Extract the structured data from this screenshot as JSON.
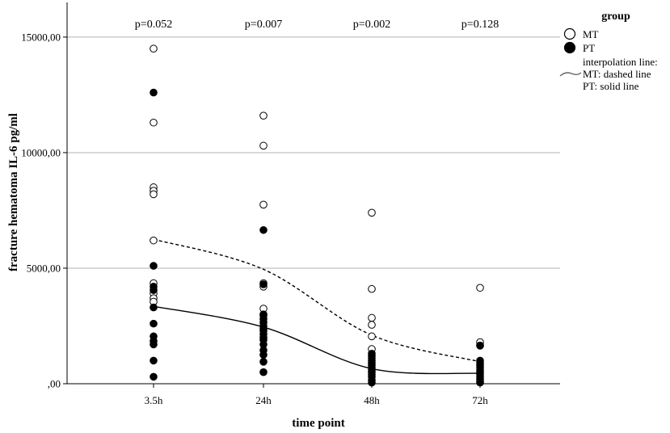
{
  "chart_data": {
    "type": "scatter",
    "title": "",
    "xlabel": "time point",
    "ylabel": "fracture hematoma IL-6 pg/ml",
    "categories": [
      "3.5h",
      "24h",
      "48h",
      "72h"
    ],
    "ylim": [
      0,
      16500
    ],
    "y_ticks": [
      0,
      5000,
      10000,
      15000
    ],
    "y_tick_labels": [
      ",00",
      "5000,00",
      "10000,00",
      "15000,00"
    ],
    "grid": "horizontal",
    "p_values": [
      "p=0.052",
      "p=0.007",
      "p=0.002",
      "p=0.128"
    ],
    "legend": {
      "title": "group",
      "placement": "top-right",
      "entries": [
        "MT",
        "PT"
      ],
      "interpolation_note": [
        "interpolation line:",
        "MT: dashed line",
        "PT: solid line"
      ]
    },
    "series": [
      {
        "name": "MT",
        "marker": "open-circle",
        "points": {
          "3.5h": [
            14500,
            11300,
            8500,
            8350,
            8200,
            6200,
            4350,
            3900,
            3700,
            3550
          ],
          "24h": [
            11600,
            10300,
            7750,
            4350,
            4200,
            3250,
            2950
          ],
          "48h": [
            7400,
            4100,
            2850,
            2550,
            2050,
            1500
          ],
          "72h": [
            4150,
            1800,
            1650,
            900
          ]
        },
        "interpolation": {
          "style": "dashed",
          "values": [
            6250,
            4950,
            2100,
            950
          ]
        }
      },
      {
        "name": "PT",
        "marker": "filled-circle",
        "points": {
          "3.5h": [
            12600,
            5100,
            4200,
            4050,
            3300,
            2600,
            2050,
            1850,
            1700,
            1000,
            300
          ],
          "24h": [
            6650,
            4300,
            3000,
            2800,
            2650,
            2500,
            2400,
            2300,
            2150,
            2000,
            1900,
            1700,
            1450,
            1250,
            950,
            500
          ],
          "48h": [
            1300,
            1200,
            1100,
            1000,
            900,
            800,
            700,
            600,
            500,
            400,
            300,
            150,
            50
          ],
          "72h": [
            1650,
            1000,
            800,
            700,
            600,
            500,
            400,
            300,
            200,
            100,
            50
          ]
        },
        "interpolation": {
          "style": "solid",
          "values": [
            3350,
            2450,
            650,
            450
          ]
        }
      }
    ],
    "colors": {
      "mt_fill": "#ffffff",
      "pt_fill": "#000000",
      "grid": "#b3b3b3",
      "axis": "#000000"
    }
  }
}
